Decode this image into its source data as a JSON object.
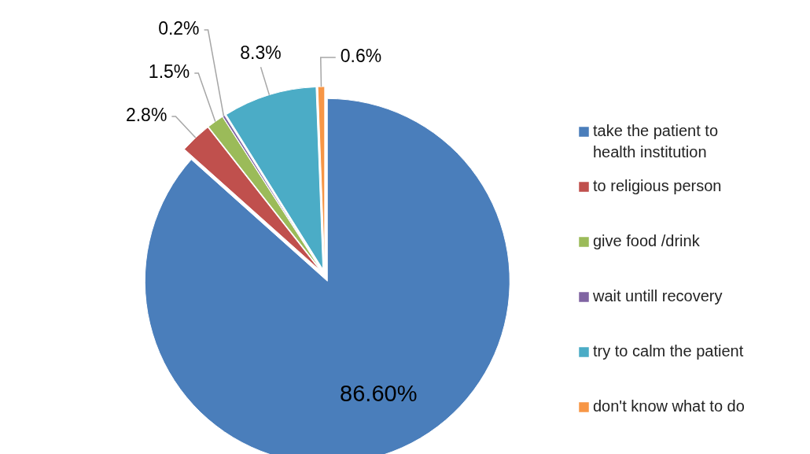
{
  "chart_data": {
    "type": "pie",
    "categories": [
      "take the patient to health institution",
      "to religious person",
      "give food /drink",
      "wait untill recovery",
      "try to calm the patient",
      "don't know what to do"
    ],
    "values": [
      86.6,
      2.8,
      1.5,
      0.2,
      8.3,
      0.6
    ],
    "colors": [
      "#4a7ebb",
      "#c0504d",
      "#9bbb59",
      "#8064a2",
      "#4bacc6",
      "#f79646"
    ],
    "value_labels": [
      "86.60%",
      "2.8%",
      "1.5%",
      "0.2%",
      "8.3%",
      "0.6%"
    ],
    "legend": "right"
  }
}
